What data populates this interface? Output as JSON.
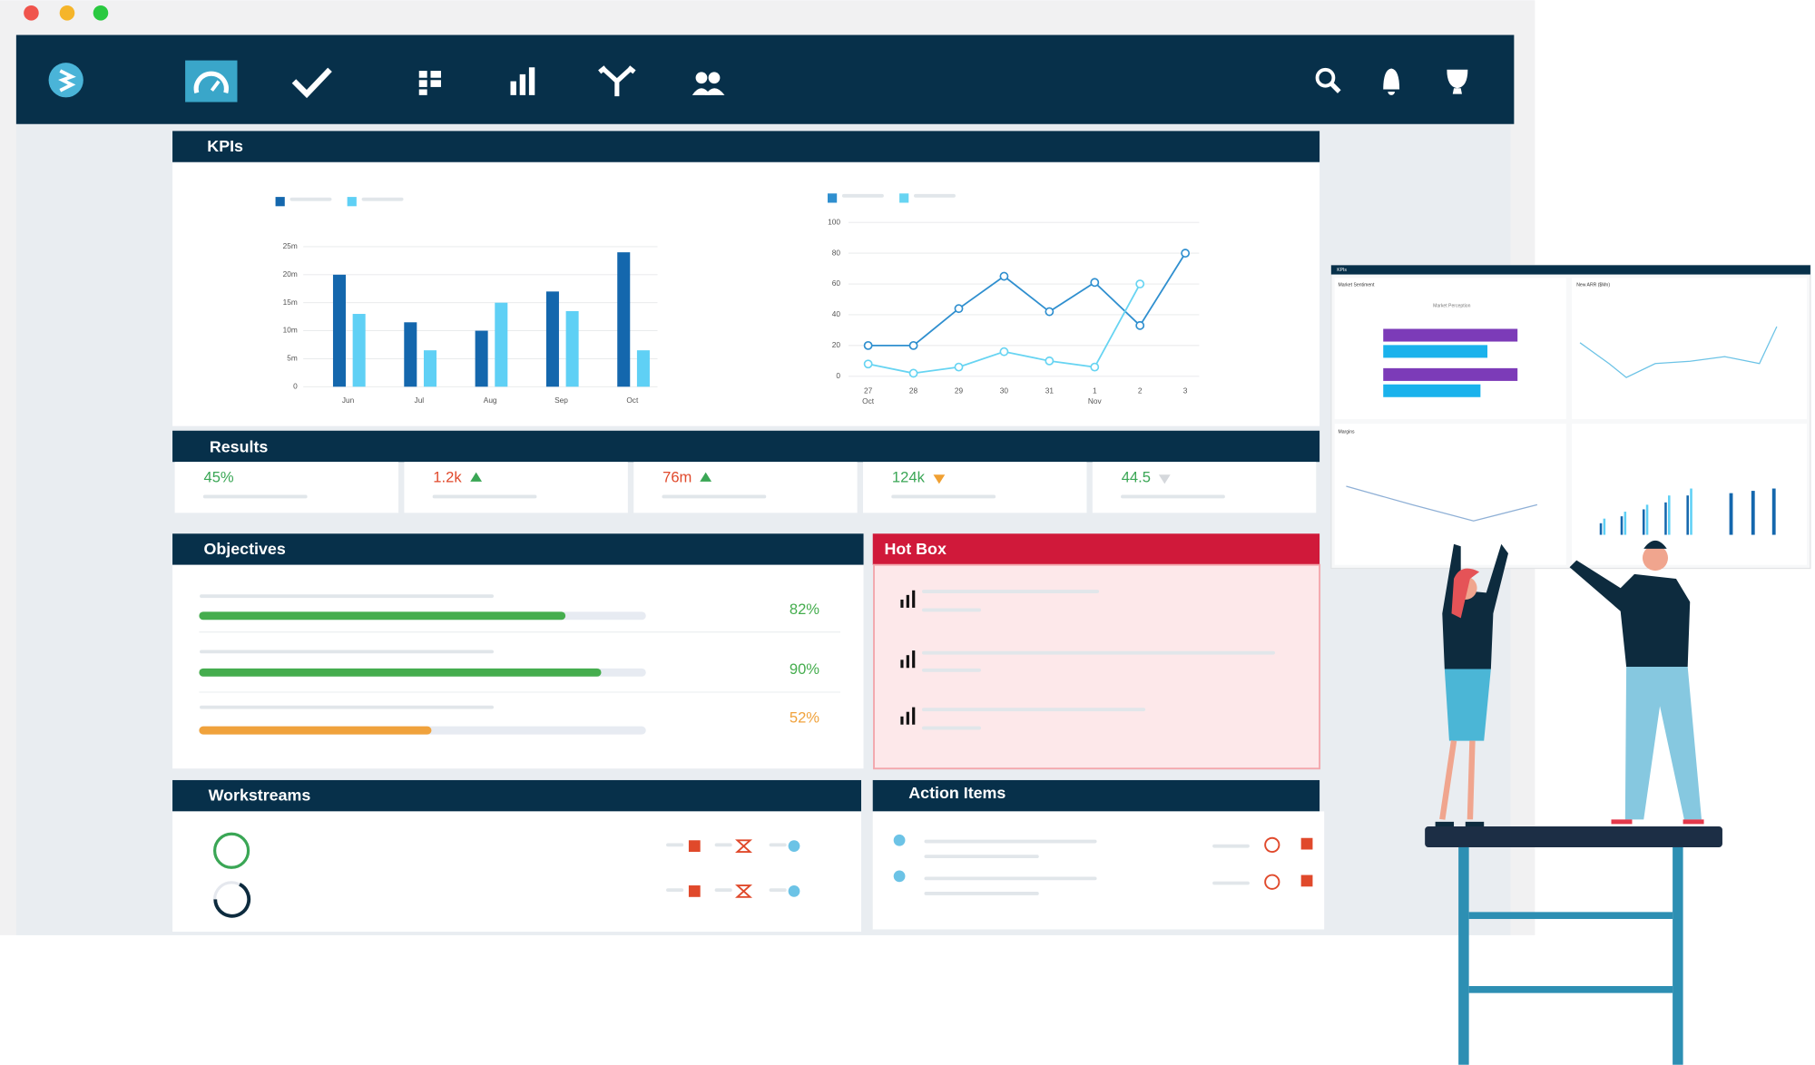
{
  "kpis": {
    "title": "KPIs",
    "bar_chart": {
      "type": "bar",
      "categories": [
        "Jun",
        "Jul",
        "Aug",
        "Sep",
        "Oct"
      ],
      "series": [
        {
          "color": "#1467ad",
          "values": [
            20,
            11.5,
            10,
            17,
            24
          ]
        },
        {
          "color": "#5fd0f5",
          "values": [
            13,
            6.5,
            15,
            13.5,
            6.5
          ]
        }
      ],
      "ylim": [
        0,
        25
      ],
      "yticks": [
        0,
        {
          "value": 5,
          "label": "5m"
        },
        {
          "value": 10,
          "label": "10m"
        },
        {
          "value": 15,
          "label": "15m"
        },
        {
          "value": 20,
          "label": "20m"
        },
        {
          "value": 25,
          "label": "25m"
        }
      ],
      "grid": true
    },
    "line_chart": {
      "type": "line",
      "categories": [
        "27",
        "28",
        "29",
        "30",
        "31",
        "1",
        "2",
        "3"
      ],
      "category_months": [
        "Oct",
        null,
        null,
        null,
        null,
        "Nov",
        null,
        null
      ],
      "series": [
        {
          "color": "#2f8fcf",
          "values": [
            20,
            20,
            44,
            65,
            42,
            61,
            33,
            80
          ]
        },
        {
          "color": "#67d4f2",
          "values": [
            8,
            2,
            6,
            16,
            10,
            6,
            60,
            null
          ]
        }
      ],
      "ylim": [
        0,
        100
      ],
      "yticks": [
        0,
        20,
        40,
        60,
        80,
        100
      ],
      "grid": true
    }
  },
  "results": {
    "title": "Results",
    "items": [
      {
        "text": "45%",
        "color": "#3aa655"
      },
      {
        "text": "1.2k",
        "color": "#e0492b",
        "trend": "up",
        "trend_color": "#3aa655"
      },
      {
        "text": "76m",
        "color": "#e0492b",
        "trend": "up",
        "trend_color": "#3aa655"
      },
      {
        "text": "124k",
        "color": "#3aa655",
        "trend": "down",
        "trend_color": "#f0a032"
      },
      {
        "text": "44.5",
        "color": "#3aa655",
        "trend": "down",
        "trend_color": "#d5d8dc"
      }
    ]
  },
  "objectives": {
    "title": "Objectives",
    "items": [
      {
        "value": 82,
        "label": "82%",
        "color": "#45ad4e"
      },
      {
        "value": 90,
        "label": "90%",
        "color": "#45ad4e"
      },
      {
        "value": 52,
        "label": "52%",
        "color": "#f0a23c"
      }
    ]
  },
  "hot_box": {
    "title": "Hot Box"
  },
  "workstreams": {
    "title": "Workstreams"
  },
  "action_items": {
    "title": "Action Items"
  },
  "mini_dashboard": {
    "title": "KPIs",
    "panels": [
      "Market Sentiment",
      "New ARR ($Mn)",
      "Margins"
    ],
    "subtitle": "Market Perception"
  }
}
